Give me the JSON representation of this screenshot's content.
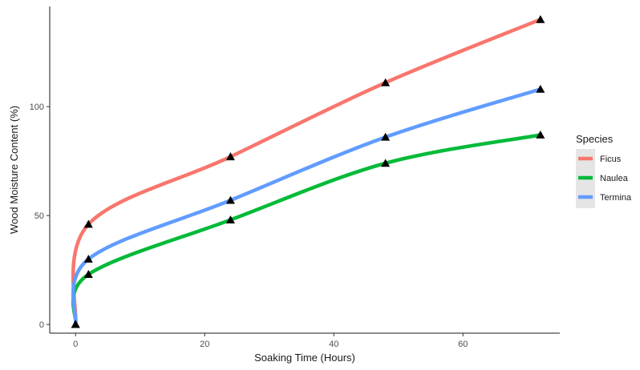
{
  "chart_data": {
    "type": "line",
    "xlabel": "Soaking Time (Hours)",
    "ylabel": "Wood Moisture Content (%)",
    "xlim": [
      -4,
      75
    ],
    "ylim": [
      -4,
      146
    ],
    "xticks": [
      0,
      20,
      40,
      60
    ],
    "yticks": [
      0,
      50,
      100
    ],
    "grid": false,
    "legend": {
      "title": "Species",
      "position": "right"
    },
    "x": [
      0,
      2,
      24,
      48,
      72
    ],
    "series": [
      {
        "name": "Ficus",
        "color": "#F8766D",
        "values": [
          0,
          46,
          77,
          111,
          140
        ]
      },
      {
        "name": "Naulea",
        "color": "#00BA38",
        "values": [
          0,
          23,
          48,
          74,
          87
        ]
      },
      {
        "name": "Termina",
        "color": "#619CFF",
        "values": [
          0,
          30,
          57,
          86,
          108
        ]
      }
    ],
    "marker": {
      "shape": "triangle",
      "color": "#000000"
    },
    "smoothing": "loess"
  }
}
